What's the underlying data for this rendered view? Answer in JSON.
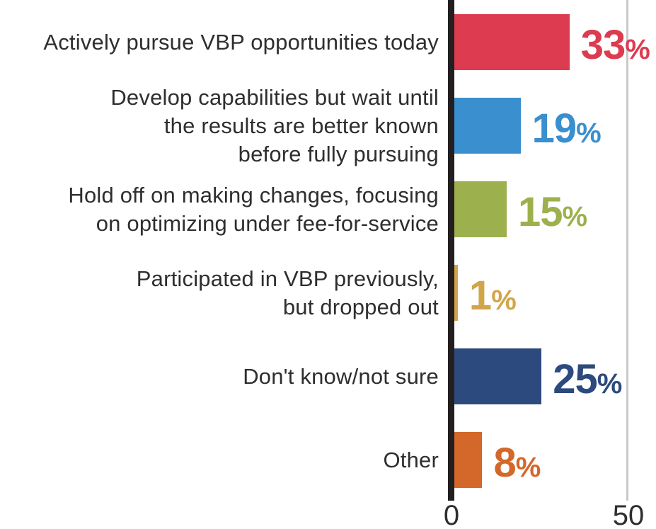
{
  "chart_data": {
    "type": "bar",
    "orientation": "horizontal",
    "title": "",
    "xlabel": "",
    "ylabel": "",
    "categories": [
      "Actively pursue VBP opportunities today",
      "Develop capabilities but wait until the results are better known before fully pursuing",
      "Hold off on making changes, focusing on optimizing under fee-for-service",
      "Participated in VBP previously, but dropped out",
      "Don't know/not sure",
      "Other"
    ],
    "label_lines": [
      [
        "Actively pursue VBP opportunities today"
      ],
      [
        "Develop capabilities but wait until",
        "the results are better known",
        "before fully pursuing"
      ],
      [
        "Hold off on making changes, focusing",
        "on optimizing under fee-for-service"
      ],
      [
        "Participated in VBP previously,",
        "but dropped out"
      ],
      [
        "Don't know/not sure"
      ],
      [
        "Other"
      ]
    ],
    "values": [
      33,
      19,
      15,
      1,
      25,
      8
    ],
    "value_labels": [
      "33",
      "19",
      "15",
      "1",
      "25",
      "8"
    ],
    "percent_sign": "%",
    "unit": "%",
    "bar_colors": [
      "#dc3b50",
      "#3a8fce",
      "#9cb04d",
      "#d2a54b",
      "#2d4a7e",
      "#d3682a"
    ],
    "x_tick_labels": [
      "0",
      "50"
    ],
    "x_ticks": [
      0,
      50
    ],
    "xlim": [
      0,
      58
    ],
    "grid": "single vertical gridline at x=50",
    "legend": "none"
  },
  "colors": {
    "background": "#ffffff",
    "axis_line": "#231f20",
    "gridline": "#c9c9c9",
    "label_text": "#2e2e2e"
  }
}
